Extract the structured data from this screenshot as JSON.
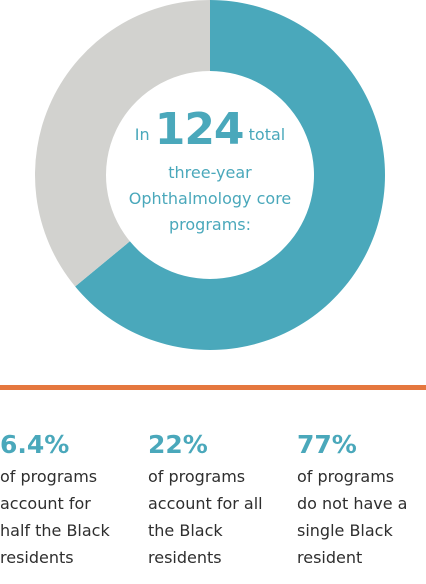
{
  "colors": {
    "primary": "#4aa8bb",
    "secondary": "#d2d2cf",
    "accent": "#e5773e",
    "text": "#2e2e2e"
  },
  "chart_data": {
    "type": "pie",
    "categories": [
      "",
      ""
    ],
    "values": [
      64,
      36
    ],
    "center_text": {
      "prefix": "In",
      "number": "124",
      "suffix": "total",
      "line2": "three-year",
      "line3": "Ophthalmology core",
      "line4": "programs:"
    }
  },
  "stats": [
    {
      "value": "6.4%",
      "lines": [
        "of programs",
        "account for",
        "half the Black",
        "residents"
      ]
    },
    {
      "value": "22%",
      "lines": [
        "of programs",
        "account for all",
        "the Black",
        "residents"
      ]
    },
    {
      "value": "77%",
      "lines": [
        "of programs",
        "do not have a",
        "single Black",
        "resident"
      ]
    }
  ]
}
